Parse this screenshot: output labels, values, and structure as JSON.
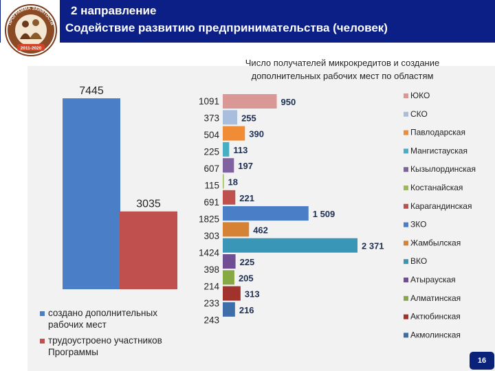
{
  "header": {
    "title_line1": "2 направление",
    "title_line2": "Содействие развитию предпринимательства (человек)",
    "logo": {
      "text_top": "ПРОГРАММА ЗАНЯТОСТИ",
      "years": "2011-2020"
    }
  },
  "page_number": "16",
  "colors": {
    "header_bg": "#0b1f86",
    "badge_bg": "#0a2279"
  },
  "chart_data": [
    {
      "type": "bar",
      "title": "",
      "categories": [
        "создано дополнительных рабочих мест",
        "трудоустроено участников Программы"
      ],
      "values": [
        7445,
        3035
      ],
      "value_labels": [
        "7445",
        "3035"
      ],
      "colors": [
        "#4a7ec6",
        "#c0504d"
      ],
      "legend": [
        {
          "label": "создано дополнительных рабочих мест",
          "color": "#4a7ec6"
        },
        {
          "label": "трудоустроено участников Программы",
          "color": "#c0504d"
        }
      ],
      "legend_position": "bottom-left",
      "ylim": [
        0,
        8600
      ]
    },
    {
      "type": "bar",
      "orientation": "horizontal",
      "title": "Число получателей микрокредитов и создание дополнительных рабочих мест по областям",
      "categories": [
        "ЮКО",
        "СКО",
        "Павлодарская",
        "Мангистауская",
        "Кызылординская",
        "Костанайская",
        "Карагандинская",
        "ЗКО",
        "Жамбылская",
        "ВКО",
        "Атырауская",
        "Алматинская",
        "Актюбинская",
        "Акмолинская"
      ],
      "values": [
        950,
        255,
        390,
        113,
        197,
        18,
        221,
        1509,
        462,
        2371,
        225,
        205,
        313,
        216
      ],
      "value_labels": [
        "950",
        "255",
        "390",
        "113",
        "197",
        "18",
        "221",
        "1 509",
        "462",
        "2 371",
        "225",
        "205",
        "313",
        "216"
      ],
      "left_labels": [
        "1091",
        "373",
        "504",
        "225",
        "607",
        "115",
        "691",
        "1825",
        "303",
        "1424",
        "398",
        "214",
        "233",
        "243"
      ],
      "colors": [
        "#d99795",
        "#a9bddc",
        "#f08c35",
        "#47aec4",
        "#7f63a1",
        "#9bbb59",
        "#c0504d",
        "#4a7ec6",
        "#d58234",
        "#3a96b6",
        "#6f4f92",
        "#86a944",
        "#a2332c",
        "#3e6da9"
      ],
      "xlim": [
        0,
        2560
      ],
      "legend_position": "right"
    }
  ]
}
